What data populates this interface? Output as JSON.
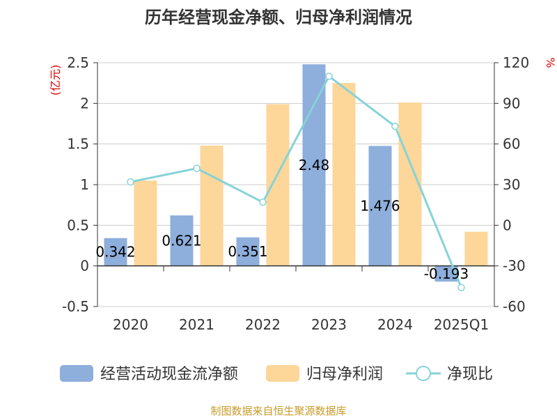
{
  "chart_data": {
    "type": "bar",
    "title": "历年经营现金净额、归母净利润情况",
    "categories": [
      "2020",
      "2021",
      "2022",
      "2023",
      "2024",
      "2025Q1"
    ],
    "series": [
      {
        "name": "经营活动现金流净额",
        "type": "bar",
        "axis": "left",
        "values": [
          0.342,
          0.621,
          0.351,
          2.48,
          1.476,
          -0.193
        ],
        "labels": [
          "0.342",
          "0.621",
          "0.351",
          "2.48",
          "1.476",
          "-0.193"
        ]
      },
      {
        "name": "归母净利润",
        "type": "bar",
        "axis": "left",
        "values": [
          1.05,
          1.48,
          1.99,
          2.25,
          2.01,
          0.42
        ]
      },
      {
        "name": "净现比",
        "type": "line",
        "axis": "right",
        "values": [
          32,
          42,
          17,
          110,
          73,
          -46
        ]
      }
    ],
    "y_left": {
      "unit": "(亿元)",
      "min": -0.5,
      "max": 2.5,
      "ticks": [
        2.5,
        2,
        1.5,
        1,
        0.5,
        0,
        -0.5
      ],
      "tick_labels": [
        "2.5",
        "2",
        "1.5",
        "1",
        "0.5",
        "0",
        "-0.5"
      ]
    },
    "y_right": {
      "unit": "%",
      "min": -60,
      "max": 120,
      "ticks": [
        120,
        90,
        60,
        30,
        0,
        -30,
        -60
      ],
      "tick_labels": [
        "120",
        "90",
        "60",
        "30",
        "0",
        "-30",
        "-60"
      ]
    },
    "legend_position": "bottom",
    "grid": true
  },
  "colors": {
    "cash_bar": "#8eaedb",
    "profit_bar": "#fdd699",
    "ratio_line": "#85d3d8",
    "grid": "#cccccc",
    "axis": "#333333",
    "unit": "#e00000",
    "source": "#c89b2a"
  },
  "source": "制图数据来自恒生聚源数据库"
}
